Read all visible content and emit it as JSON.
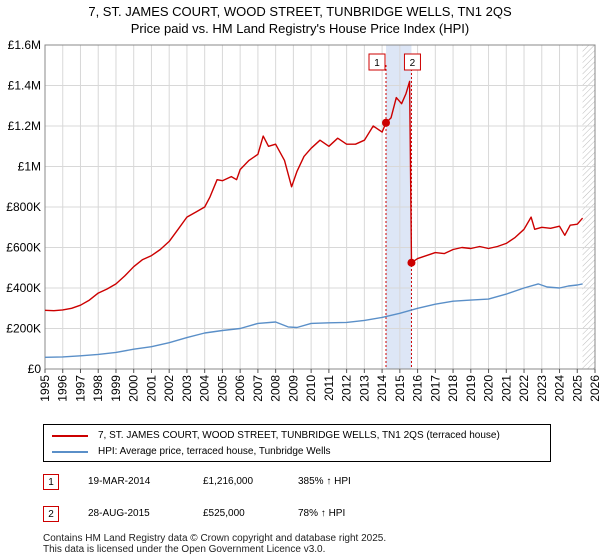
{
  "title_line1": "7, ST. JAMES COURT, WOOD STREET, TUNBRIDGE WELLS, TN1 2QS",
  "title_line2": "Price paid vs. HM Land Registry's House Price Index (HPI)",
  "chart_data": {
    "type": "line",
    "title": "7, ST. JAMES COURT, WOOD STREET, TUNBRIDGE WELLS, TN1 2QS",
    "subtitle": "Price paid vs. HM Land Registry's House Price Index (HPI)",
    "xlim": [
      1995,
      2026
    ],
    "ylim": [
      0,
      1600000
    ],
    "x_ticks": [
      1995,
      1996,
      1997,
      1998,
      1999,
      2000,
      2001,
      2002,
      2003,
      2004,
      2005,
      2006,
      2007,
      2008,
      2009,
      2010,
      2011,
      2012,
      2013,
      2014,
      2015,
      2016,
      2017,
      2018,
      2019,
      2020,
      2021,
      2022,
      2023,
      2024,
      2025,
      2026
    ],
    "y_ticks": [
      {
        "value": 0,
        "label": "£0"
      },
      {
        "value": 200000,
        "label": "£200K"
      },
      {
        "value": 400000,
        "label": "£400K"
      },
      {
        "value": 600000,
        "label": "£600K"
      },
      {
        "value": 800000,
        "label": "£800K"
      },
      {
        "value": 1000000,
        "label": "£1M"
      },
      {
        "value": 1200000,
        "label": "£1.2M"
      },
      {
        "value": 1400000,
        "label": "£1.4M"
      },
      {
        "value": 1600000,
        "label": "£1.6M"
      }
    ],
    "grid": true,
    "series": [
      {
        "name": "7, ST. JAMES COURT, WOOD STREET, TUNBRIDGE WELLS, TN1 2QS (terraced house)",
        "color": "#cc0000",
        "points": [
          [
            1995.0,
            290000
          ],
          [
            1995.5,
            288000
          ],
          [
            1996.0,
            292000
          ],
          [
            1996.5,
            300000
          ],
          [
            1997.0,
            315000
          ],
          [
            1997.5,
            340000
          ],
          [
            1998.0,
            375000
          ],
          [
            1998.5,
            395000
          ],
          [
            1999.0,
            420000
          ],
          [
            1999.5,
            460000
          ],
          [
            2000.0,
            505000
          ],
          [
            2000.5,
            540000
          ],
          [
            2001.0,
            560000
          ],
          [
            2001.5,
            590000
          ],
          [
            2002.0,
            630000
          ],
          [
            2002.5,
            690000
          ],
          [
            2003.0,
            750000
          ],
          [
            2003.5,
            775000
          ],
          [
            2004.0,
            800000
          ],
          [
            2004.3,
            850000
          ],
          [
            2004.7,
            935000
          ],
          [
            2005.0,
            930000
          ],
          [
            2005.5,
            950000
          ],
          [
            2005.8,
            935000
          ],
          [
            2006.0,
            985000
          ],
          [
            2006.5,
            1030000
          ],
          [
            2007.0,
            1060000
          ],
          [
            2007.3,
            1150000
          ],
          [
            2007.6,
            1100000
          ],
          [
            2008.0,
            1110000
          ],
          [
            2008.5,
            1030000
          ],
          [
            2008.9,
            900000
          ],
          [
            2009.2,
            975000
          ],
          [
            2009.6,
            1050000
          ],
          [
            2010.0,
            1090000
          ],
          [
            2010.5,
            1130000
          ],
          [
            2011.0,
            1100000
          ],
          [
            2011.5,
            1140000
          ],
          [
            2012.0,
            1110000
          ],
          [
            2012.5,
            1110000
          ],
          [
            2013.0,
            1130000
          ],
          [
            2013.5,
            1200000
          ],
          [
            2014.0,
            1170000
          ],
          [
            2014.22,
            1216000
          ],
          [
            2014.5,
            1240000
          ],
          [
            2014.8,
            1340000
          ],
          [
            2015.1,
            1310000
          ],
          [
            2015.35,
            1360000
          ],
          [
            2015.55,
            1420000
          ],
          [
            2015.655,
            525000
          ],
          [
            2016.0,
            545000
          ],
          [
            2016.5,
            560000
          ],
          [
            2017.0,
            575000
          ],
          [
            2017.5,
            570000
          ],
          [
            2018.0,
            590000
          ],
          [
            2018.5,
            600000
          ],
          [
            2019.0,
            595000
          ],
          [
            2019.5,
            605000
          ],
          [
            2020.0,
            595000
          ],
          [
            2020.5,
            605000
          ],
          [
            2021.0,
            620000
          ],
          [
            2021.5,
            650000
          ],
          [
            2022.0,
            690000
          ],
          [
            2022.4,
            750000
          ],
          [
            2022.6,
            690000
          ],
          [
            2023.0,
            700000
          ],
          [
            2023.5,
            695000
          ],
          [
            2024.0,
            705000
          ],
          [
            2024.3,
            660000
          ],
          [
            2024.6,
            710000
          ],
          [
            2025.0,
            715000
          ],
          [
            2025.3,
            745000
          ]
        ]
      },
      {
        "name": "HPI: Average price, terraced house, Tunbridge Wells",
        "color": "#5a8fc8",
        "points": [
          [
            1995.0,
            58000
          ],
          [
            1996.0,
            60000
          ],
          [
            1997.0,
            65000
          ],
          [
            1998.0,
            72000
          ],
          [
            1999.0,
            82000
          ],
          [
            2000.0,
            98000
          ],
          [
            2001.0,
            110000
          ],
          [
            2002.0,
            130000
          ],
          [
            2003.0,
            155000
          ],
          [
            2004.0,
            178000
          ],
          [
            2005.0,
            190000
          ],
          [
            2006.0,
            200000
          ],
          [
            2007.0,
            225000
          ],
          [
            2008.0,
            232000
          ],
          [
            2008.7,
            208000
          ],
          [
            2009.2,
            205000
          ],
          [
            2010.0,
            225000
          ],
          [
            2011.0,
            228000
          ],
          [
            2012.0,
            230000
          ],
          [
            2013.0,
            240000
          ],
          [
            2014.0,
            255000
          ],
          [
            2015.0,
            275000
          ],
          [
            2016.0,
            300000
          ],
          [
            2017.0,
            320000
          ],
          [
            2018.0,
            335000
          ],
          [
            2019.0,
            340000
          ],
          [
            2020.0,
            345000
          ],
          [
            2021.0,
            370000
          ],
          [
            2022.0,
            400000
          ],
          [
            2022.8,
            420000
          ],
          [
            2023.3,
            405000
          ],
          [
            2024.0,
            400000
          ],
          [
            2024.5,
            410000
          ],
          [
            2025.0,
            415000
          ],
          [
            2025.3,
            420000
          ]
        ]
      }
    ],
    "sale_markers": [
      {
        "label": "1",
        "x": 2014.22,
        "y": 1216000
      },
      {
        "label": "2",
        "x": 2015.655,
        "y": 525000
      }
    ],
    "shaded_span": [
      2014.22,
      2015.655
    ],
    "hatched_from": 2025.3
  },
  "legend": {
    "items": [
      {
        "label": "7, ST. JAMES COURT, WOOD STREET, TUNBRIDGE WELLS, TN1 2QS (terraced house)",
        "color": "#cc0000"
      },
      {
        "label": "HPI: Average price, terraced house, Tunbridge Wells",
        "color": "#5a8fc8"
      }
    ]
  },
  "sales": [
    {
      "num": "1",
      "date": "19-MAR-2014",
      "price": "£1,216,000",
      "hpi": "385% ↑ HPI"
    },
    {
      "num": "2",
      "date": "28-AUG-2015",
      "price": "£525,000",
      "hpi": "78% ↑ HPI"
    }
  ],
  "footer": {
    "line1": "Contains HM Land Registry data © Crown copyright and database right 2025.",
    "line2": "This data is licensed under the Open Government Licence v3.0."
  }
}
